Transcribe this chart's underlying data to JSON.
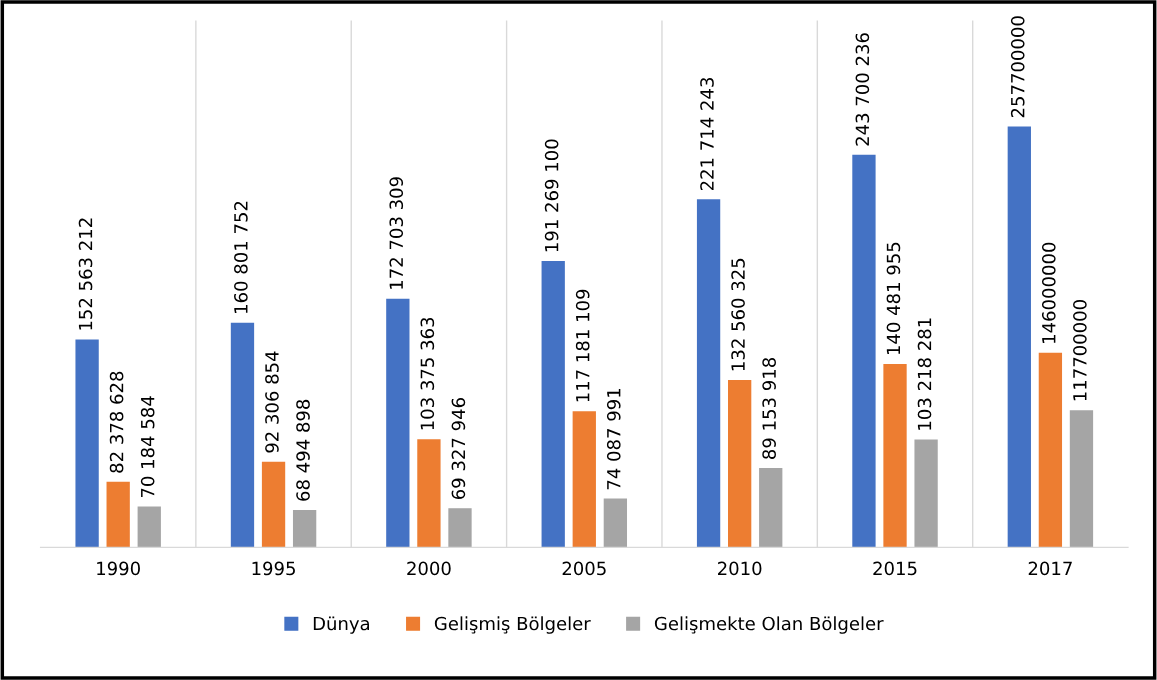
{
  "chart_data": {
    "type": "bar",
    "categories": [
      "1990",
      "1995",
      "2000",
      "2005",
      "2010",
      "2015",
      "2017"
    ],
    "series": [
      {
        "name": "Dünya",
        "color": "#4472c4",
        "values": [
          152563212,
          160801752,
          172703309,
          191269100,
          221714243,
          243700236,
          257700000
        ],
        "value_labels": [
          "152 563 212",
          "160 801 752",
          "172 703 309",
          "191 269 100",
          "221 714 243",
          "243 700 236",
          "257700000"
        ]
      },
      {
        "name": "Gelişmiş Bölgeler",
        "color": "#ed7d31",
        "values": [
          82378628,
          92306854,
          103375363,
          117181109,
          132560325,
          140481955,
          146000000
        ],
        "value_labels": [
          "82 378 628",
          "92 306 854",
          "103 375 363",
          "117 181 109",
          "132 560 325",
          "140 481 955",
          "146000000"
        ]
      },
      {
        "name": "Gelişmekte Olan Bölgeler",
        "color": "#a5a5a5",
        "values": [
          70184584,
          68494898,
          69327946,
          74087991,
          89153918,
          103218281,
          117700000
        ],
        "value_labels": [
          "70 184 584",
          "68 494 898",
          "69 327 946",
          "74 087 991",
          "89 153 918",
          "103 218 281",
          "117700000"
        ]
      }
    ],
    "ylim": [
      50000000,
      310000000
    ],
    "tick_labels": "x",
    "legend": "bottom"
  }
}
